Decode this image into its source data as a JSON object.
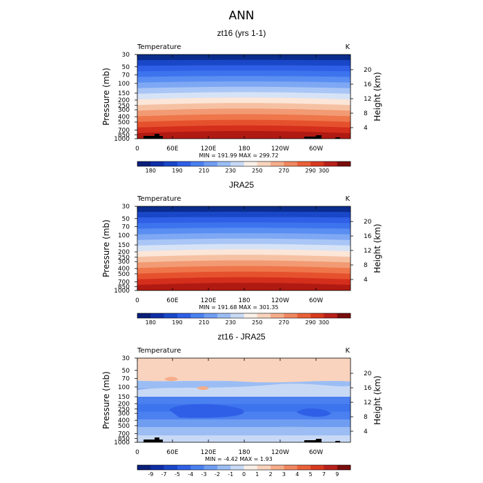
{
  "page_title": "ANN",
  "chart_data": [
    {
      "type": "heatmap",
      "title": "zt16 (yrs 1-1)",
      "subtitle_left": "Temperature",
      "subtitle_right": "K",
      "ylabel": "Pressure (mb)",
      "ylabel_right": "Height (km)",
      "xticks": [
        "0",
        "60E",
        "120E",
        "180",
        "120W",
        "60W"
      ],
      "pressure_ticks": [
        "30",
        "50",
        "70",
        "100",
        "150",
        "200",
        "250",
        "300",
        "400",
        "500",
        "700",
        "850",
        "1000"
      ],
      "height_ticks": [
        "20",
        "16",
        "12",
        "8",
        "4"
      ],
      "stats": "MIN = 191.99   MAX = 299.72",
      "colorbar_labels": [
        "180",
        "190",
        "210",
        "230",
        "250",
        "270",
        "290",
        "300"
      ],
      "bands": [
        "#0a2c8c",
        "#1a47c8",
        "#2f5fe6",
        "#3d74ee",
        "#5a8ef2",
        "#7ea8f4",
        "#a9c6f6",
        "#d6e2f6",
        "#fbe6d8",
        "#f6c1a3",
        "#f29a73",
        "#ee764a",
        "#e6512d",
        "#d42e1c",
        "#b01a12"
      ],
      "colorbar_colors": [
        "#0a1f7a",
        "#0f2ea6",
        "#1a47c8",
        "#2f5fe6",
        "#4a80f0",
        "#6f9df2",
        "#9bbdf4",
        "#c8d9f5",
        "#f9f0e8",
        "#f9d3bd",
        "#f5ad8a",
        "#f08760",
        "#ea6038",
        "#d8391f",
        "#b8201a",
        "#7a0d0d"
      ]
    },
    {
      "type": "heatmap",
      "title": "JRA25",
      "subtitle_left": "Temperature",
      "subtitle_right": "K",
      "ylabel": "Pressure (mb)",
      "ylabel_right": "Height (km)",
      "xticks": [
        "0",
        "60E",
        "120E",
        "180",
        "120W",
        "60W"
      ],
      "pressure_ticks": [
        "30",
        "50",
        "70",
        "100",
        "150",
        "200",
        "250",
        "300",
        "400",
        "500",
        "700",
        "850",
        "1000"
      ],
      "height_ticks": [
        "20",
        "16",
        "12",
        "8",
        "4"
      ],
      "stats": "MIN = 191.68   MAX = 301.35",
      "colorbar_labels": [
        "180",
        "190",
        "210",
        "230",
        "250",
        "270",
        "290",
        "300"
      ],
      "bands": [
        "#0a2c8c",
        "#1a47c8",
        "#2f5fe6",
        "#3d74ee",
        "#5a8ef2",
        "#7ea8f4",
        "#a9c6f6",
        "#d6e2f6",
        "#fbe6d8",
        "#f6c1a3",
        "#f29a73",
        "#ee764a",
        "#e6512d",
        "#d42e1c",
        "#b01a12"
      ],
      "colorbar_colors": [
        "#0a1f7a",
        "#0f2ea6",
        "#1a47c8",
        "#2f5fe6",
        "#4a80f0",
        "#6f9df2",
        "#9bbdf4",
        "#c8d9f5",
        "#f9f0e8",
        "#f9d3bd",
        "#f5ad8a",
        "#f08760",
        "#ea6038",
        "#d8391f",
        "#b8201a",
        "#7a0d0d"
      ]
    },
    {
      "type": "heatmap",
      "title": "zt16 - JRA25",
      "subtitle_left": "Temperature",
      "subtitle_right": "K",
      "ylabel": "Pressure (mb)",
      "ylabel_right": "Height (km)",
      "xticks": [
        "0",
        "60E",
        "120E",
        "180",
        "120W",
        "60W"
      ],
      "pressure_ticks": [
        "30",
        "50",
        "70",
        "100",
        "150",
        "200",
        "250",
        "300",
        "400",
        "500",
        "700",
        "850",
        "1000"
      ],
      "height_ticks": [
        "20",
        "16",
        "12",
        "8",
        "4"
      ],
      "stats": "MIN =   -4.42   MAX =    1.93",
      "colorbar_labels": [
        "-9",
        "-7",
        "-5",
        "-4",
        "-3",
        "-2",
        "-1",
        "0",
        "1",
        "2",
        "3",
        "4",
        "5",
        "7",
        "9"
      ],
      "bands": [
        "#f9d3bd",
        "#fbe6d8",
        "#c8d9f5",
        "#9bbdf4",
        "#6f9df2",
        "#4a80f0",
        "#3d74ee",
        "#4a80f0",
        "#6f9df2",
        "#9bbdf4",
        "#c8d9f5"
      ],
      "colorbar_colors": [
        "#0a1f7a",
        "#0f2ea6",
        "#1a47c8",
        "#2f5fe6",
        "#4a80f0",
        "#6f9df2",
        "#9bbdf4",
        "#c8d9f5",
        "#f9f0e8",
        "#f9d3bd",
        "#f5ad8a",
        "#f08760",
        "#ea6038",
        "#d8391f",
        "#b8201a",
        "#7a0d0d"
      ]
    }
  ]
}
